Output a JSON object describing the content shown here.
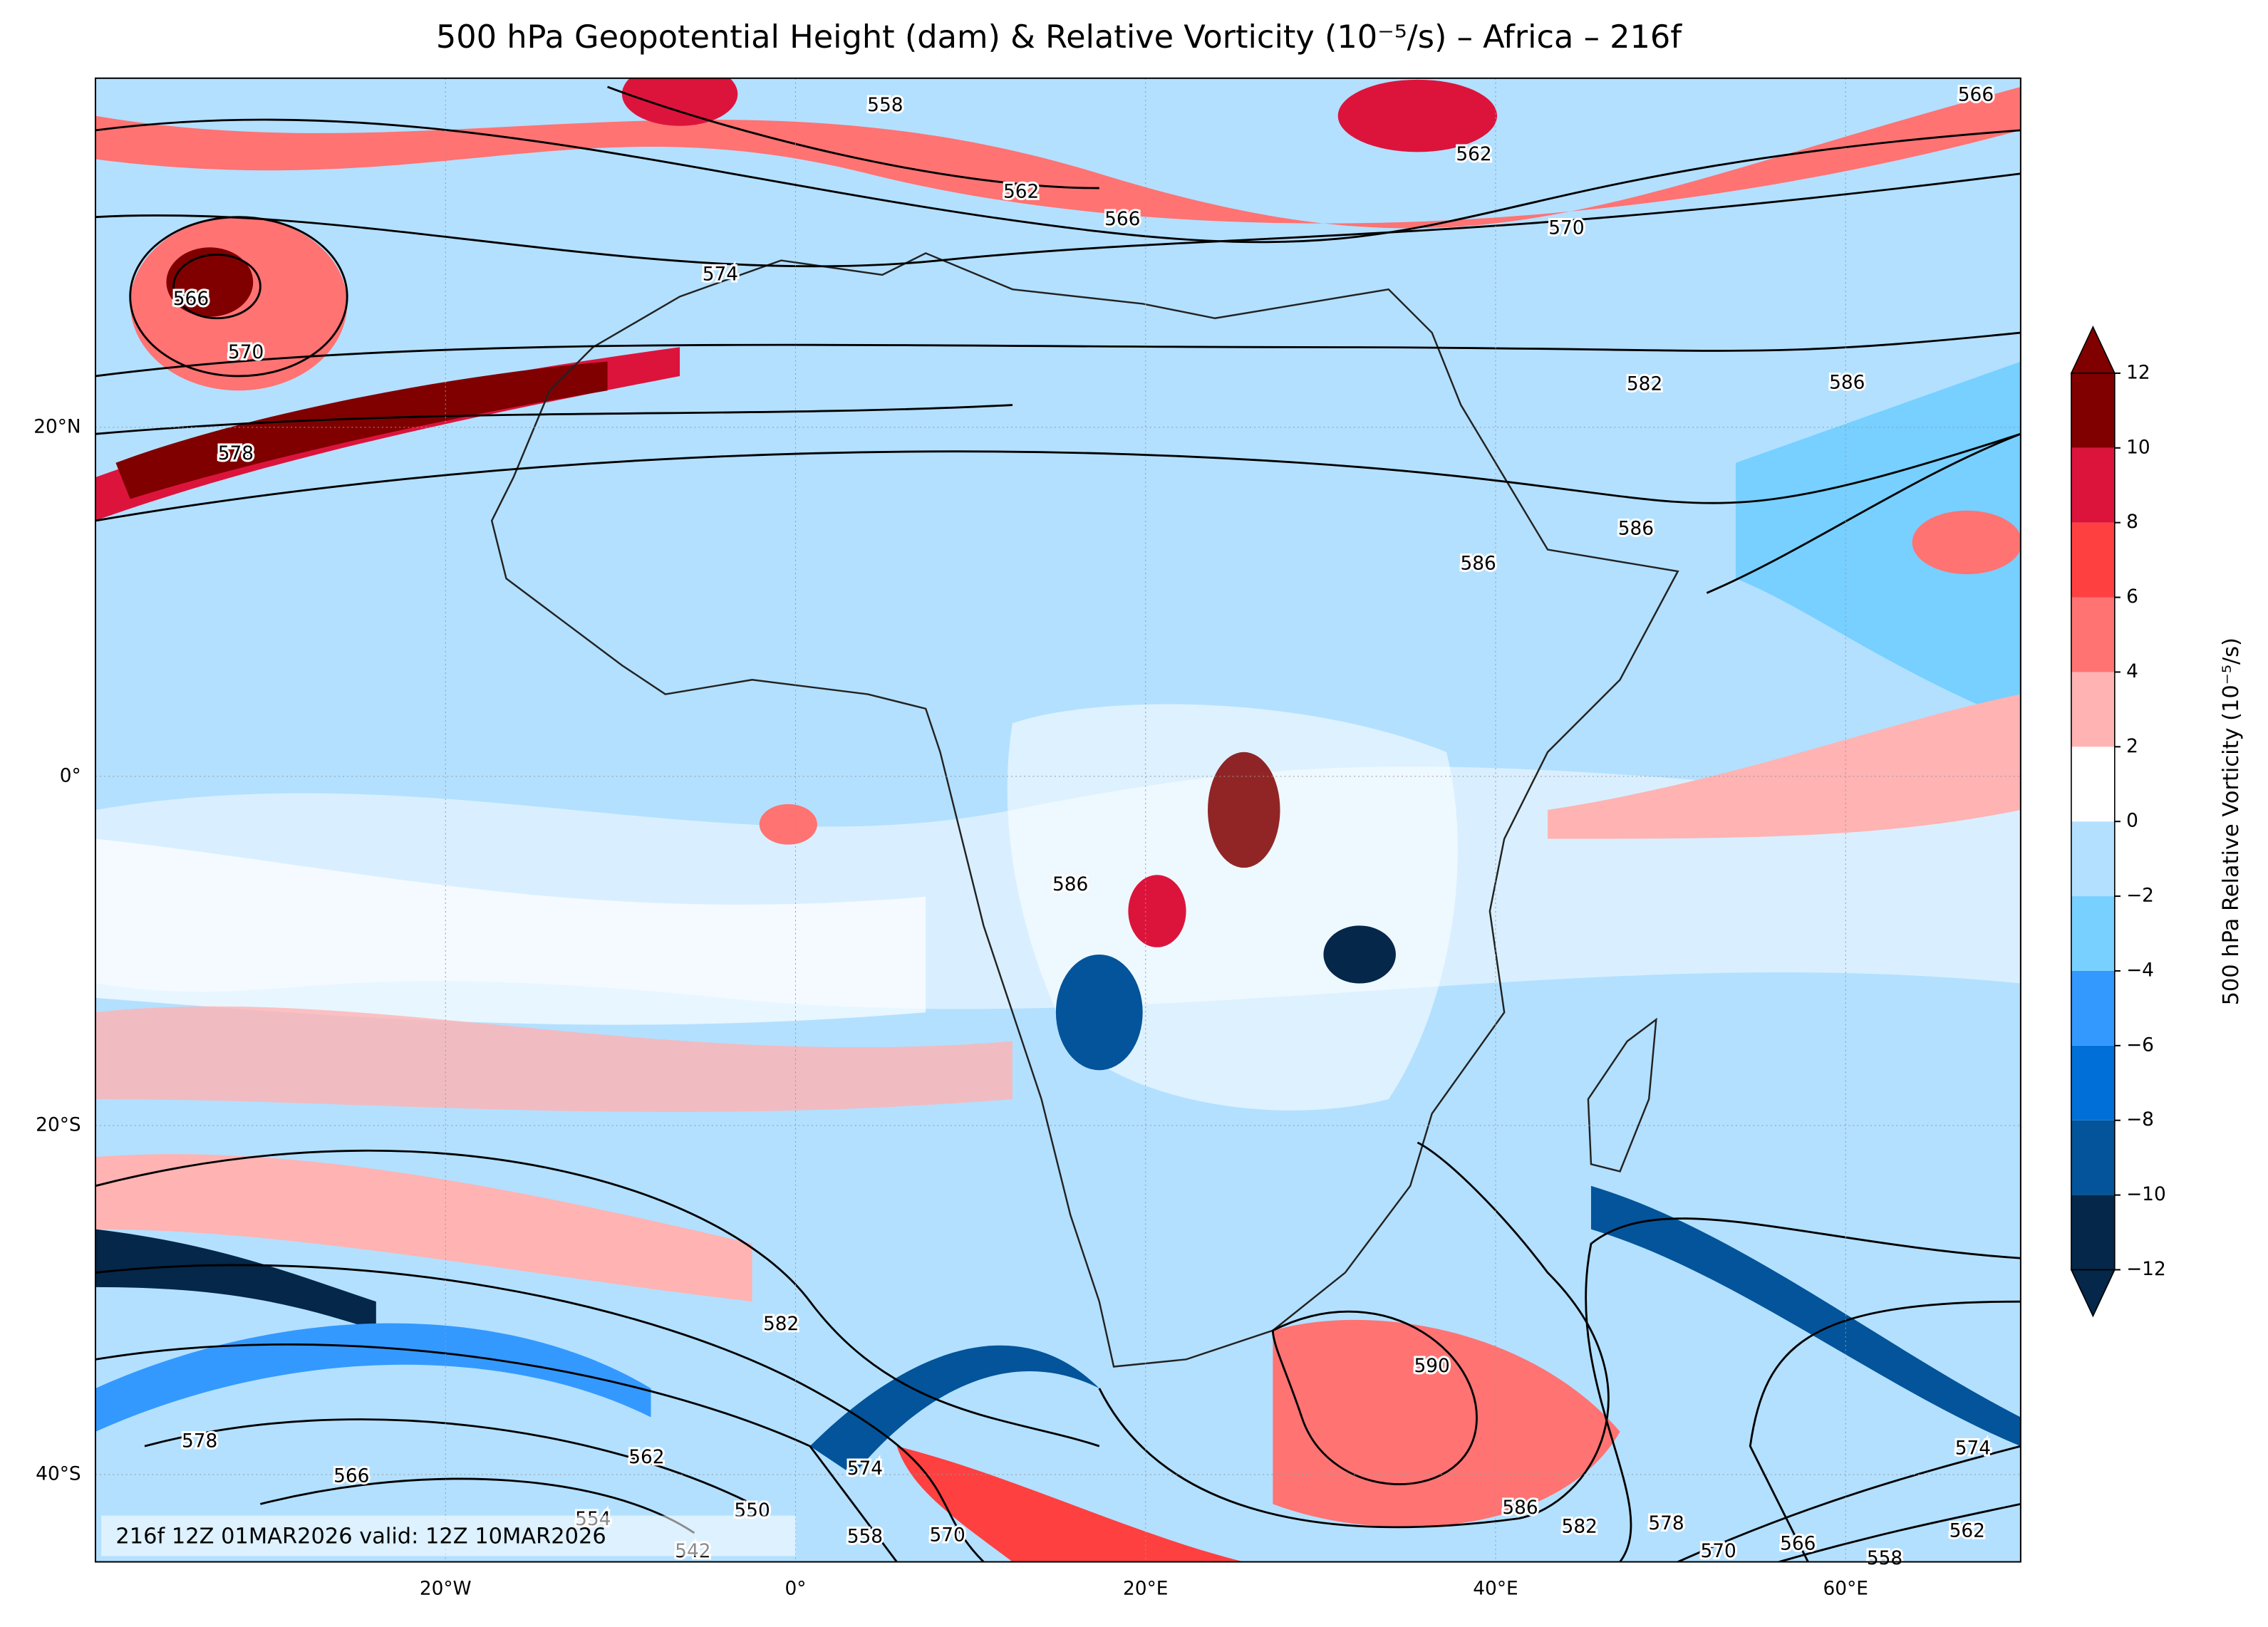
{
  "map": {
    "title": "500 hPa Geopotential Height (dam) & Relative Vorticity (10⁻⁵/s) – Africa – 216f",
    "xlim": [
      -40,
      70
    ],
    "ylim": [
      -45,
      40
    ],
    "xticks": [
      {
        "value": -20,
        "label": "20°W"
      },
      {
        "value": 0,
        "label": "0°"
      },
      {
        "value": 20,
        "label": "20°E"
      },
      {
        "value": 40,
        "label": "40°E"
      },
      {
        "value": 60,
        "label": "60°E"
      }
    ],
    "yticks": [
      {
        "value": 20,
        "label": "20°N"
      },
      {
        "value": 0,
        "label": "0°"
      },
      {
        "value": -20,
        "label": "20°S"
      },
      {
        "value": -40,
        "label": "40°S"
      }
    ],
    "grid": true,
    "colorbar": {
      "label": "500 hPa Relative Vorticity (10⁻⁵/s)",
      "levels": [
        {
          "value": -12,
          "label": "−12"
        },
        {
          "value": -10,
          "label": "−10"
        },
        {
          "value": -8,
          "label": "−8"
        },
        {
          "value": -6,
          "label": "−6"
        },
        {
          "value": -4,
          "label": "−4"
        },
        {
          "value": -2,
          "label": "−2"
        },
        0,
        2,
        4,
        6,
        8,
        10,
        12
      ],
      "colors": [
        "#04274a",
        "#03549a",
        "#0070d8",
        "#3399ff",
        "#77d0ff",
        "#b3e0ff",
        "#ffffff",
        "#ffb3b3",
        "#ff7373",
        "#ff4040",
        "#dc143c",
        "#800000"
      ]
    },
    "contour_labels": [
      "558",
      "562",
      "566",
      "562",
      "570",
      "566",
      "574",
      "566",
      "570",
      "578",
      "582",
      "586",
      "586",
      "586",
      "586",
      "582",
      "590",
      "578",
      "566",
      "562",
      "574",
      "570",
      "586",
      "582",
      "578",
      "574",
      "562",
      "570",
      "566",
      "554",
      "550",
      "542",
      "558",
      "558"
    ],
    "footnote": "216f 12Z 01MAR2026 valid: 12Z 10MAR2026"
  }
}
